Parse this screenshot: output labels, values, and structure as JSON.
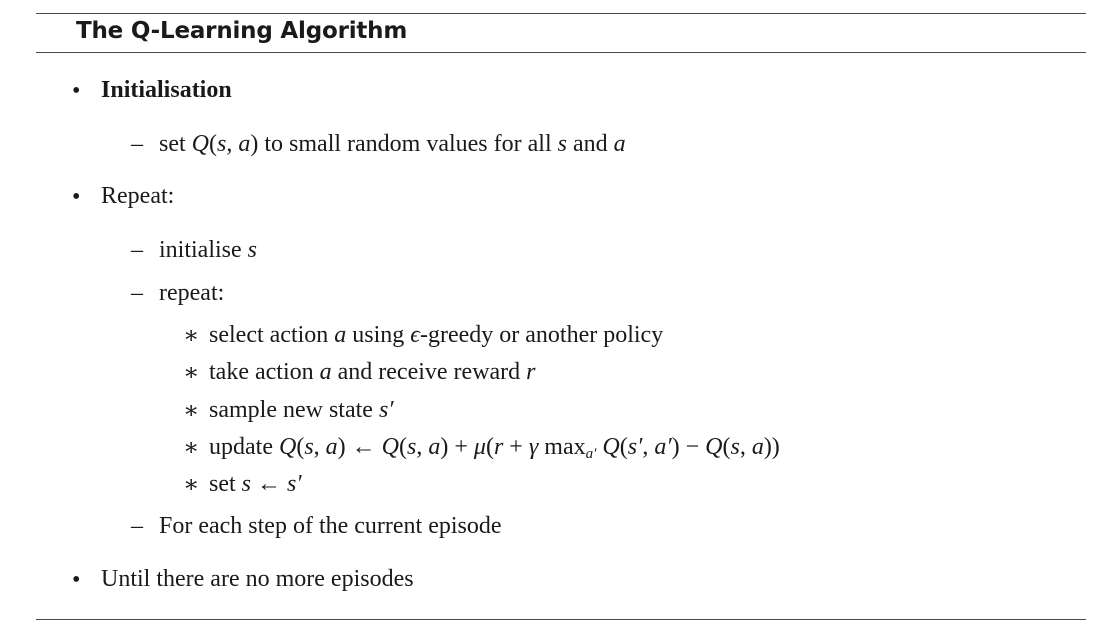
{
  "title": "The Q-Learning Algorithm",
  "markers": {
    "bullet": "•",
    "dash": "–",
    "star": "∗"
  },
  "items": {
    "init_heading": "Initialisation",
    "init_step": {
      "t1": "set ",
      "m1": "Q",
      "u1": "(",
      "m2": "s",
      "u2": ", ",
      "m3": "a",
      "u3": ")",
      "t2": " to small random values for all ",
      "m4": "s",
      "t3": " and ",
      "m5": "a"
    },
    "repeat_heading": "Repeat:",
    "initialise": {
      "t1": "initialise ",
      "m1": "s"
    },
    "repeat_inner": "repeat:",
    "select": {
      "t1": "select action ",
      "m1": "a",
      "t2": " using ",
      "m2": "ϵ",
      "t3": "-greedy or another policy"
    },
    "take": {
      "t1": "take action ",
      "m1": "a",
      "t2": " and receive reward ",
      "m2": "r"
    },
    "sample": {
      "t1": "sample new state ",
      "m1": "s′"
    },
    "update": {
      "t1": "update ",
      "m1": "Q",
      "u1": "(",
      "m2": "s",
      "u2": ", ",
      "m3": "a",
      "u3": ") ← ",
      "m4": "Q",
      "u4": "(",
      "m5": "s",
      "u5": ", ",
      "m6": "a",
      "u6": ") + ",
      "m7": "μ",
      "u7": "(",
      "m8": "r",
      "u8": " + ",
      "m9": "γ",
      "u9": " max",
      "sub": "a′",
      "u10": " ",
      "m10": "Q",
      "u11": "(",
      "m11": "s′",
      "u12": ", ",
      "m12": "a′",
      "u13": ") − ",
      "m13": "Q",
      "u14": "(",
      "m14": "s",
      "u15": ", ",
      "m15": "a",
      "u16": "))"
    },
    "set": {
      "t1": "set ",
      "m1": "s",
      "u1": " ← ",
      "m2": "s′"
    },
    "for_each": "For each step of the current episode",
    "until": "Until there are no more episodes"
  }
}
